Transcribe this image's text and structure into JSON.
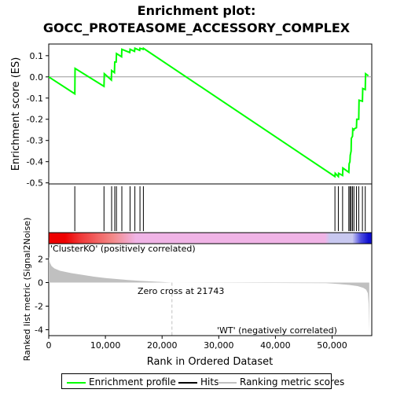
{
  "title_line1": "Enrichment plot:",
  "title_line2": "GOCC_PROTEASOME_ACCESSORY_COMPLEX",
  "colors": {
    "enrichment_line": "#00ff00",
    "hits": "#000000",
    "metric_fill": "#c0c0c0",
    "zero_cross_line": "#c0c0c0",
    "positive_label": "#cc0000",
    "negative_label": "#0000cc",
    "bar_red": "#ee0000",
    "bar_pink": "#f0b4e6",
    "bar_lavender": "#c8c8f0",
    "bar_blue": "#1010d0"
  },
  "legend": {
    "enrichment_label": "Enrichment profile",
    "hits_label": "Hits",
    "metric_label": "Ranking metric scores"
  },
  "annotations": {
    "positive": "'ClusterKO' (positively correlated)",
    "negative": "'WT' (negatively correlated)",
    "zero_cross": "Zero cross at 21743"
  },
  "chart_data": [
    {
      "type": "line",
      "panel": "enrichment",
      "ylabel": "Enrichment score (ES)",
      "xlim": [
        0,
        57000
      ],
      "ylim": [
        -0.505,
        0.155
      ],
      "yticks": [
        0.1,
        0.0,
        -0.1,
        -0.2,
        -0.3,
        -0.4,
        -0.5
      ],
      "ytick_labels": [
        "0.1",
        "0.0",
        "-0.1",
        "-0.2",
        "-0.3",
        "-0.4",
        "-0.5"
      ],
      "grid": false,
      "series": [
        {
          "x": [
            0,
            4600,
            4650,
            9750,
            9800,
            11050,
            11100,
            11600,
            11650,
            11900,
            11950,
            12850,
            12900,
            14300,
            14350,
            15150,
            15200,
            16050,
            16100,
            16650,
            16700,
            50500,
            50550,
            51100,
            51150,
            51850,
            51900,
            52950,
            53000,
            53150,
            53200,
            53350,
            53400,
            53600,
            53650,
            53850,
            53900,
            54300,
            54350,
            54700,
            54750,
            55350,
            55400,
            55850,
            55900,
            56400
          ],
          "y": [
            0.0,
            -0.08,
            0.04,
            -0.045,
            0.015,
            -0.015,
            0.03,
            0.02,
            0.07,
            0.07,
            0.11,
            0.095,
            0.13,
            0.115,
            0.13,
            0.12,
            0.135,
            0.125,
            0.135,
            0.13,
            0.135,
            -0.47,
            -0.455,
            -0.47,
            -0.455,
            -0.465,
            -0.43,
            -0.45,
            -0.41,
            -0.4,
            -0.37,
            -0.35,
            -0.29,
            -0.28,
            -0.245,
            -0.25,
            -0.245,
            -0.24,
            -0.2,
            -0.2,
            -0.11,
            -0.115,
            -0.055,
            -0.06,
            0.015,
            0.005
          ]
        }
      ]
    },
    {
      "type": "scatter",
      "panel": "hits",
      "xlim": [
        0,
        57000
      ],
      "hit_positions": [
        4600,
        9750,
        11100,
        11650,
        11950,
        12900,
        14350,
        15200,
        16100,
        16700,
        50500,
        51100,
        51850,
        52950,
        53150,
        53350,
        53600,
        53850,
        54300,
        54700,
        55350,
        55850
      ]
    },
    {
      "type": "area",
      "panel": "ranked_metric",
      "xlabel": "Rank in Ordered Dataset",
      "ylabel": "Ranked list metric (Signal2Noise)",
      "xlim": [
        0,
        57000
      ],
      "ylim": [
        -4.5,
        3.3
      ],
      "xticks": [
        0,
        10000,
        20000,
        30000,
        40000,
        50000
      ],
      "xtick_labels": [
        "0",
        "10,000",
        "20,000",
        "30,000",
        "40,000",
        "50,000"
      ],
      "yticks": [
        2,
        0,
        -2,
        -4
      ],
      "ytick_labels": [
        "2",
        "0",
        "-2",
        "-4"
      ],
      "zero_cross": 21743,
      "x": [
        0,
        200,
        500,
        1000,
        2000,
        3000,
        4000,
        6000,
        8000,
        10000,
        12000,
        14000,
        16000,
        18000,
        20000,
        21743,
        49000,
        51000,
        53000,
        54500,
        55500,
        56000,
        56300,
        56450,
        56550
      ],
      "y": [
        2.2,
        1.7,
        1.4,
        1.2,
        1.0,
        0.9,
        0.8,
        0.65,
        0.5,
        0.38,
        0.3,
        0.22,
        0.15,
        0.1,
        0.05,
        0.0,
        -0.05,
        -0.12,
        -0.2,
        -0.3,
        -0.45,
        -0.6,
        -0.9,
        -1.8,
        -4.2
      ]
    }
  ]
}
